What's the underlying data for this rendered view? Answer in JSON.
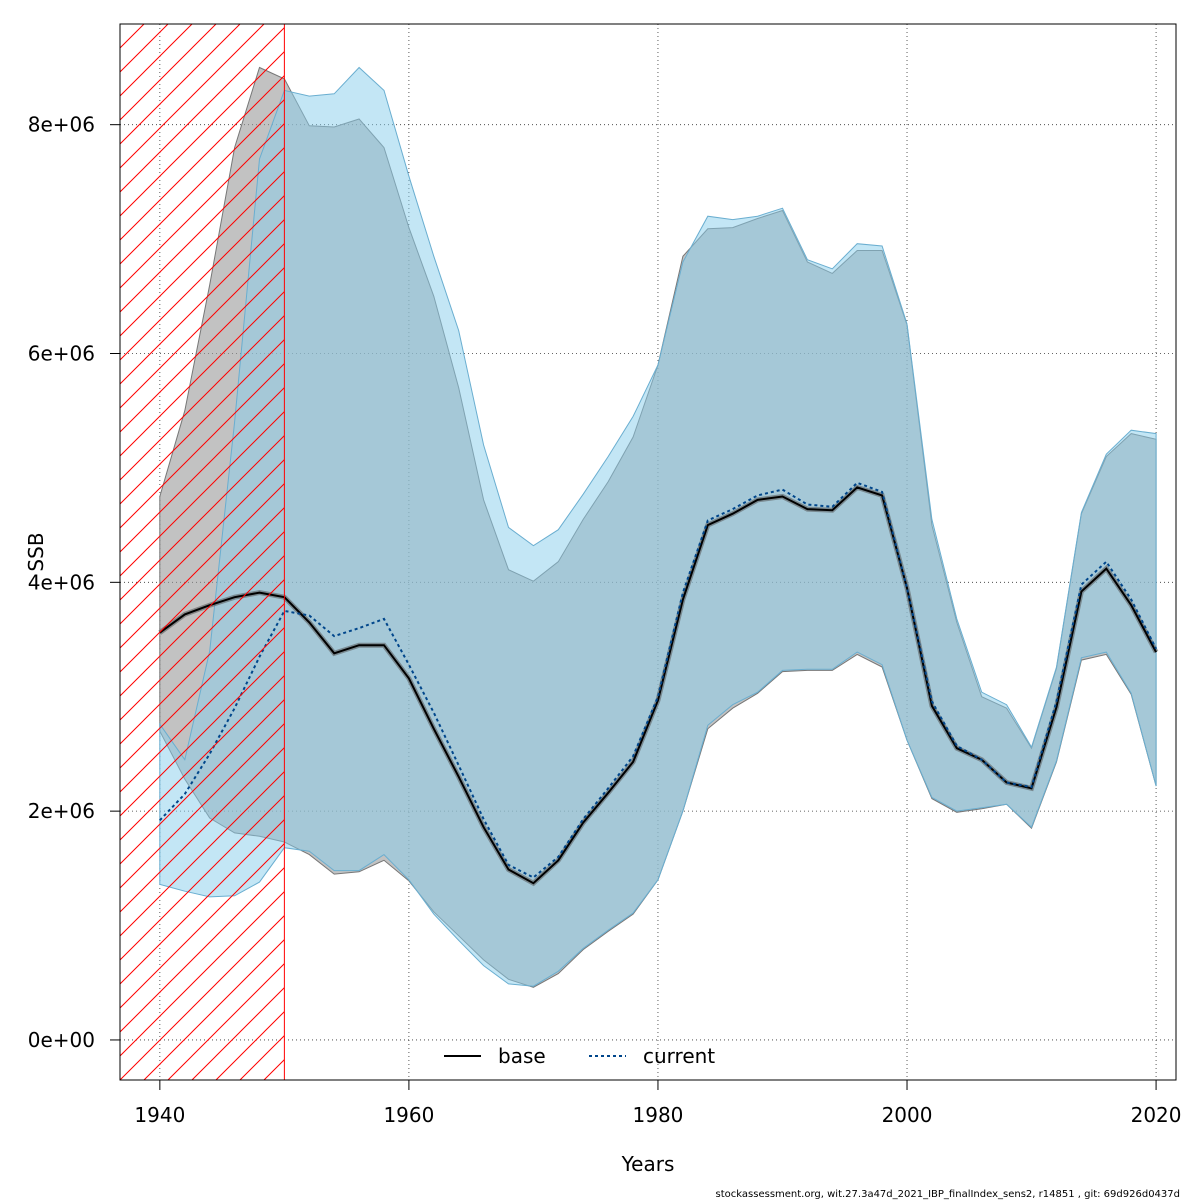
{
  "chart_data": {
    "type": "area",
    "xlabel": "Years",
    "ylabel": "SSB",
    "xlim": [
      1936.8,
      2021.6
    ],
    "ylim": [
      -350000,
      8880000
    ],
    "x_ticks": [
      1940,
      1960,
      1980,
      2000,
      2020
    ],
    "x_tick_labels": [
      "1940",
      "1960",
      "1980",
      "2000",
      "2020"
    ],
    "y_ticks": [
      0,
      2000000,
      4000000,
      6000000,
      8000000
    ],
    "y_tick_labels": [
      "0e+00",
      "2e+06",
      "4e+06",
      "6e+06",
      "8e+06"
    ],
    "grid": true,
    "legend_position": "bottom-center",
    "highlight_region": {
      "x_from": 1936.8,
      "x_to": 1950,
      "style": "red-hatched"
    },
    "footer": "stockassessment.org, wit.27.3a47d_2021_IBP_finalIndex_sens2, r14851 , git: 69d926d0437d",
    "colors": {
      "base_band": "#b3b3b3",
      "current_band": "#87ceeb",
      "current_line": "#00468b",
      "base_line": "#000000",
      "hatch": "#ff0000"
    },
    "series": [
      {
        "name": "base",
        "style": "solid",
        "x": [
          1940,
          1942,
          1944,
          1946,
          1948,
          1950,
          1952,
          1954,
          1956,
          1958,
          1960,
          1962,
          1964,
          1966,
          1968,
          1970,
          1972,
          1974,
          1976,
          1978,
          1980,
          1982,
          1984,
          1986,
          1988,
          1990,
          1992,
          1994,
          1996,
          1998,
          2000,
          2002,
          2004,
          2006,
          2008,
          2010,
          2012,
          2014,
          2016,
          2018,
          2020
        ],
        "values": [
          3560000,
          3720000,
          3800000,
          3870000,
          3910000,
          3870000,
          3650000,
          3380000,
          3450000,
          3450000,
          3160000,
          2720000,
          2300000,
          1860000,
          1490000,
          1370000,
          1570000,
          1900000,
          2160000,
          2430000,
          2970000,
          3850000,
          4500000,
          4600000,
          4720000,
          4750000,
          4640000,
          4630000,
          4830000,
          4760000,
          3950000,
          2920000,
          2550000,
          2450000,
          2250000,
          2200000,
          2910000,
          3920000,
          4120000,
          3800000,
          3390000
        ],
        "lower": [
          2700000,
          2280000,
          1940000,
          1810000,
          1780000,
          1730000,
          1620000,
          1450000,
          1470000,
          1570000,
          1390000,
          1120000,
          910000,
          700000,
          530000,
          460000,
          580000,
          790000,
          950000,
          1100000,
          1400000,
          2000000,
          2720000,
          2900000,
          3030000,
          3220000,
          3230000,
          3230000,
          3370000,
          3260000,
          2620000,
          2110000,
          1990000,
          2020000,
          2060000,
          1850000,
          2430000,
          3320000,
          3370000,
          3020000,
          2220000
        ],
        "upper": [
          4750000,
          5500000,
          6600000,
          7800000,
          8500000,
          8400000,
          7990000,
          7980000,
          8050000,
          7800000,
          7100000,
          6500000,
          5700000,
          4720000,
          4110000,
          4010000,
          4180000,
          4550000,
          4880000,
          5270000,
          5900000,
          6850000,
          7090000,
          7100000,
          7180000,
          7250000,
          6800000,
          6700000,
          6900000,
          6900000,
          6250000,
          4500000,
          3650000,
          3000000,
          2900000,
          2550000,
          3250000,
          4600000,
          5100000,
          5300000,
          5250000
        ]
      },
      {
        "name": "current",
        "style": "dotted",
        "x": [
          1940,
          1942,
          1944,
          1946,
          1948,
          1950,
          1952,
          1954,
          1956,
          1958,
          1960,
          1962,
          1964,
          1966,
          1968,
          1970,
          1972,
          1974,
          1976,
          1978,
          1980,
          1982,
          1984,
          1986,
          1988,
          1990,
          1992,
          1994,
          1996,
          1998,
          2000,
          2002,
          2004,
          2006,
          2008,
          2010,
          2012,
          2014,
          2016,
          2018,
          2020
        ],
        "values": [
          1920000,
          2150000,
          2500000,
          2900000,
          3350000,
          3750000,
          3710000,
          3530000,
          3600000,
          3680000,
          3280000,
          2860000,
          2400000,
          1930000,
          1530000,
          1420000,
          1600000,
          1930000,
          2200000,
          2480000,
          3000000,
          3910000,
          4540000,
          4640000,
          4760000,
          4810000,
          4680000,
          4660000,
          4870000,
          4790000,
          3950000,
          2960000,
          2570000,
          2450000,
          2250000,
          2210000,
          2960000,
          3980000,
          4180000,
          3850000,
          3420000
        ],
        "lower": [
          1360000,
          1300000,
          1250000,
          1260000,
          1380000,
          1680000,
          1650000,
          1480000,
          1480000,
          1620000,
          1400000,
          1100000,
          870000,
          650000,
          490000,
          470000,
          600000,
          800000,
          960000,
          1110000,
          1400000,
          2000000,
          2750000,
          2930000,
          3040000,
          3230000,
          3240000,
          3240000,
          3390000,
          3280000,
          2620000,
          2120000,
          2000000,
          2030000,
          2060000,
          1860000,
          2440000,
          3340000,
          3390000,
          3030000,
          2220000
        ],
        "upper": [
          2760000,
          2450000,
          3400000,
          5400000,
          7700000,
          8300000,
          8250000,
          8270000,
          8500000,
          8300000,
          7550000,
          6850000,
          6200000,
          5200000,
          4480000,
          4320000,
          4460000,
          4770000,
          5100000,
          5450000,
          5900000,
          6800000,
          7200000,
          7170000,
          7200000,
          7270000,
          6820000,
          6740000,
          6960000,
          6940000,
          6260000,
          4550000,
          3680000,
          3040000,
          2930000,
          2560000,
          3260000,
          4610000,
          5120000,
          5330000,
          5300000
        ]
      }
    ]
  }
}
